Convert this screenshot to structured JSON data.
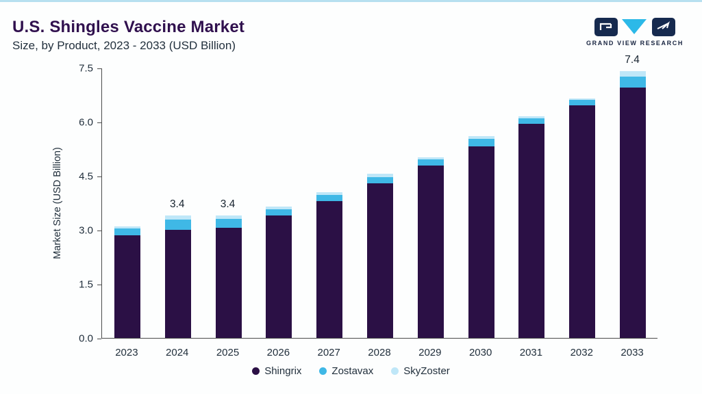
{
  "header": {
    "title": "U.S. Shingles Vaccine Market",
    "subtitle": "Size, by Product, 2023 - 2033 (USD Billion)",
    "logo_text": "GRAND VIEW RESEARCH"
  },
  "colors": {
    "accent_border": "#b7e0f0",
    "title": "#30104e",
    "axis_text": "#1f2d3a",
    "axis_line": "#4a4a4a",
    "logo_navy": "#162a4f",
    "logo_cyan": "#2cb9e8"
  },
  "chart_data": {
    "type": "bar",
    "stacked": true,
    "title": "U.S. Shingles Vaccine Market",
    "subtitle": "Size, by Product, 2023 - 2033 (USD Billion)",
    "xlabel": "",
    "ylabel": "Market Size (USD Billion)",
    "ylim": [
      0,
      7.5
    ],
    "yticks": [
      "0.0",
      "1.5",
      "3.0",
      "4.5",
      "6.0",
      "7.5"
    ],
    "grid": false,
    "legend_position": "bottom",
    "categories": [
      "2023",
      "2024",
      "2025",
      "2026",
      "2027",
      "2028",
      "2029",
      "2030",
      "2031",
      "2032",
      "2033"
    ],
    "series": [
      {
        "name": "Shingrix",
        "values": [
          2.85,
          3.0,
          3.05,
          3.4,
          3.8,
          4.3,
          4.78,
          5.32,
          5.95,
          6.45,
          6.95
        ]
      },
      {
        "name": "Zostavax",
        "values": [
          0.18,
          0.28,
          0.25,
          0.17,
          0.17,
          0.17,
          0.17,
          0.2,
          0.15,
          0.15,
          0.3
        ]
      },
      {
        "name": "SkyZoster",
        "values": [
          0.07,
          0.12,
          0.1,
          0.08,
          0.08,
          0.08,
          0.07,
          0.08,
          0.05,
          0.05,
          0.15
        ]
      }
    ],
    "series_colors": [
      "#2b1045",
      "#3fb8e6",
      "#bfe7f8"
    ],
    "bar_value_labels": [
      null,
      "3.4",
      "3.4",
      null,
      null,
      null,
      null,
      null,
      null,
      null,
      "7.4"
    ],
    "legend": [
      "Shingrix",
      "Zostavax",
      "SkyZoster"
    ]
  }
}
